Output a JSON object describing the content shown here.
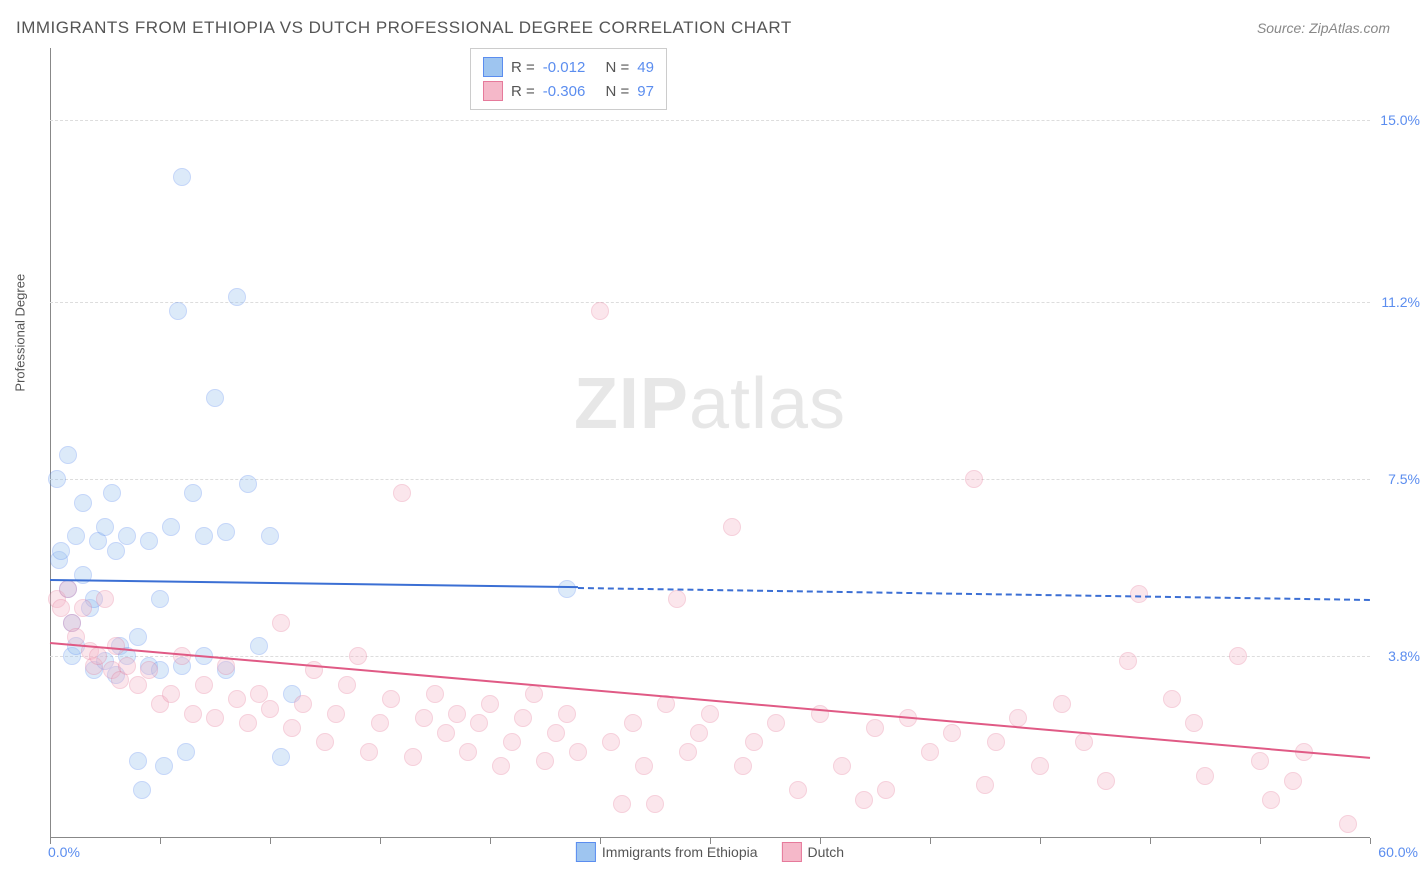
{
  "title": "IMMIGRANTS FROM ETHIOPIA VS DUTCH PROFESSIONAL DEGREE CORRELATION CHART",
  "source": "Source: ZipAtlas.com",
  "watermark_a": "ZIP",
  "watermark_b": "atlas",
  "chart": {
    "type": "scatter",
    "xlim": [
      0,
      60
    ],
    "ylim": [
      0,
      16.5
    ],
    "x_ticks": [
      0,
      5,
      10,
      15,
      20,
      25,
      30,
      35,
      40,
      45,
      50,
      55,
      60
    ],
    "y_gridlines": [
      3.8,
      7.5,
      11.2,
      15.0
    ],
    "y_tick_labels": [
      "3.8%",
      "7.5%",
      "11.2%",
      "15.0%"
    ],
    "x_min_label": "0.0%",
    "x_max_label": "60.0%",
    "ylabel": "Professional Degree",
    "background_color": "#ffffff",
    "grid_color": "#dddddd",
    "axis_color": "#888888",
    "tick_label_color": "#5b8def",
    "point_radius": 9,
    "point_opacity": 0.35,
    "series": [
      {
        "name": "Immigrants from Ethiopia",
        "fill_color": "#9ec5f0",
        "stroke_color": "#5b8def",
        "line_color": "#3b6fd4",
        "r_label": "R =",
        "r_value": "-0.012",
        "n_label": "N =",
        "n_value": "49",
        "trend": {
          "x1": 0,
          "y1": 5.4,
          "x2": 24,
          "y2": 5.25,
          "dash_to_x": 60,
          "dash_to_y": 5.0
        },
        "points": [
          [
            0.3,
            7.5
          ],
          [
            0.4,
            5.8
          ],
          [
            0.5,
            6.0
          ],
          [
            0.8,
            5.2
          ],
          [
            0.8,
            8.0
          ],
          [
            1.0,
            3.8
          ],
          [
            1.0,
            4.5
          ],
          [
            1.2,
            4.0
          ],
          [
            1.2,
            6.3
          ],
          [
            1.5,
            5.5
          ],
          [
            1.5,
            7.0
          ],
          [
            1.8,
            4.8
          ],
          [
            2.0,
            5.0
          ],
          [
            2.0,
            3.5
          ],
          [
            2.2,
            6.2
          ],
          [
            2.5,
            6.5
          ],
          [
            2.5,
            3.7
          ],
          [
            2.8,
            7.2
          ],
          [
            3.0,
            3.4
          ],
          [
            3.0,
            6.0
          ],
          [
            3.2,
            4.0
          ],
          [
            3.5,
            3.8
          ],
          [
            3.5,
            6.3
          ],
          [
            4.0,
            4.2
          ],
          [
            4.0,
            1.6
          ],
          [
            4.2,
            1.0
          ],
          [
            4.5,
            3.6
          ],
          [
            4.5,
            6.2
          ],
          [
            5.0,
            3.5
          ],
          [
            5.0,
            5.0
          ],
          [
            5.2,
            1.5
          ],
          [
            5.5,
            6.5
          ],
          [
            5.8,
            11.0
          ],
          [
            6.0,
            3.6
          ],
          [
            6.0,
            13.8
          ],
          [
            6.2,
            1.8
          ],
          [
            6.5,
            7.2
          ],
          [
            7.0,
            3.8
          ],
          [
            7.0,
            6.3
          ],
          [
            7.5,
            9.2
          ],
          [
            8.0,
            3.5
          ],
          [
            8.0,
            6.4
          ],
          [
            8.5,
            11.3
          ],
          [
            9.0,
            7.4
          ],
          [
            9.5,
            4.0
          ],
          [
            10.0,
            6.3
          ],
          [
            10.5,
            1.7
          ],
          [
            11.0,
            3.0
          ],
          [
            23.5,
            5.2
          ]
        ]
      },
      {
        "name": "Dutch",
        "fill_color": "#f5b8c9",
        "stroke_color": "#e67a9b",
        "line_color": "#e05a85",
        "r_label": "R =",
        "r_value": "-0.306",
        "n_label": "N =",
        "n_value": "97",
        "trend": {
          "x1": 0,
          "y1": 4.1,
          "x2": 60,
          "y2": 1.7
        },
        "points": [
          [
            0.3,
            5.0
          ],
          [
            0.5,
            4.8
          ],
          [
            0.8,
            5.2
          ],
          [
            1.0,
            4.5
          ],
          [
            1.2,
            4.2
          ],
          [
            1.5,
            4.8
          ],
          [
            1.8,
            3.9
          ],
          [
            2.0,
            3.6
          ],
          [
            2.2,
            3.8
          ],
          [
            2.5,
            5.0
          ],
          [
            2.8,
            3.5
          ],
          [
            3.0,
            4.0
          ],
          [
            3.2,
            3.3
          ],
          [
            3.5,
            3.6
          ],
          [
            4.0,
            3.2
          ],
          [
            4.5,
            3.5
          ],
          [
            5.0,
            2.8
          ],
          [
            5.5,
            3.0
          ],
          [
            6.0,
            3.8
          ],
          [
            6.5,
            2.6
          ],
          [
            7.0,
            3.2
          ],
          [
            7.5,
            2.5
          ],
          [
            8.0,
            3.6
          ],
          [
            8.5,
            2.9
          ],
          [
            9.0,
            2.4
          ],
          [
            9.5,
            3.0
          ],
          [
            10.0,
            2.7
          ],
          [
            10.5,
            4.5
          ],
          [
            11.0,
            2.3
          ],
          [
            11.5,
            2.8
          ],
          [
            12.0,
            3.5
          ],
          [
            12.5,
            2.0
          ],
          [
            13.0,
            2.6
          ],
          [
            13.5,
            3.2
          ],
          [
            14.0,
            3.8
          ],
          [
            14.5,
            1.8
          ],
          [
            15.0,
            2.4
          ],
          [
            15.5,
            2.9
          ],
          [
            16.0,
            7.2
          ],
          [
            16.5,
            1.7
          ],
          [
            17.0,
            2.5
          ],
          [
            17.5,
            3.0
          ],
          [
            18.0,
            2.2
          ],
          [
            18.5,
            2.6
          ],
          [
            19.0,
            1.8
          ],
          [
            19.5,
            2.4
          ],
          [
            20.0,
            2.8
          ],
          [
            20.5,
            1.5
          ],
          [
            21.0,
            2.0
          ],
          [
            21.5,
            2.5
          ],
          [
            22.0,
            3.0
          ],
          [
            22.5,
            1.6
          ],
          [
            23.0,
            2.2
          ],
          [
            23.5,
            2.6
          ],
          [
            24.0,
            1.8
          ],
          [
            25.0,
            11.0
          ],
          [
            25.5,
            2.0
          ],
          [
            26.0,
            0.7
          ],
          [
            26.5,
            2.4
          ],
          [
            27.0,
            1.5
          ],
          [
            27.5,
            0.7
          ],
          [
            28.0,
            2.8
          ],
          [
            28.5,
            5.0
          ],
          [
            29.0,
            1.8
          ],
          [
            29.5,
            2.2
          ],
          [
            30.0,
            2.6
          ],
          [
            31.0,
            6.5
          ],
          [
            31.5,
            1.5
          ],
          [
            32.0,
            2.0
          ],
          [
            33.0,
            2.4
          ],
          [
            34.0,
            1.0
          ],
          [
            35.0,
            2.6
          ],
          [
            36.0,
            1.5
          ],
          [
            37.0,
            0.8
          ],
          [
            37.5,
            2.3
          ],
          [
            38.0,
            1.0
          ],
          [
            39.0,
            2.5
          ],
          [
            40.0,
            1.8
          ],
          [
            41.0,
            2.2
          ],
          [
            42.0,
            7.5
          ],
          [
            42.5,
            1.1
          ],
          [
            43.0,
            2.0
          ],
          [
            44.0,
            2.5
          ],
          [
            45.0,
            1.5
          ],
          [
            46.0,
            2.8
          ],
          [
            47.0,
            2.0
          ],
          [
            48.0,
            1.2
          ],
          [
            49.0,
            3.7
          ],
          [
            49.5,
            5.1
          ],
          [
            51.0,
            2.9
          ],
          [
            52.0,
            2.4
          ],
          [
            52.5,
            1.3
          ],
          [
            54.0,
            3.8
          ],
          [
            55.0,
            1.6
          ],
          [
            55.5,
            0.8
          ],
          [
            56.5,
            1.2
          ],
          [
            57.0,
            1.8
          ],
          [
            59.0,
            0.3
          ]
        ]
      }
    ]
  }
}
